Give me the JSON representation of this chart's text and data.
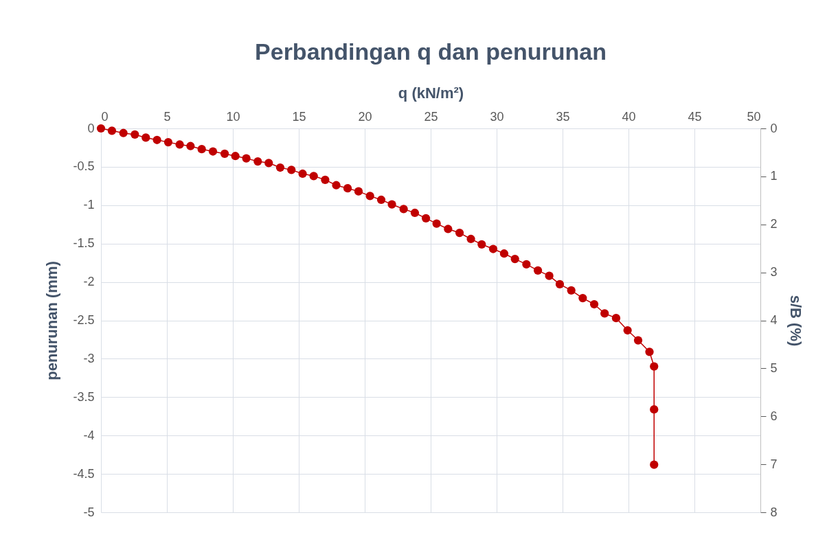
{
  "chart_data": {
    "type": "line",
    "title": "Perbandingan q dan penurunan",
    "xlabel": "q (kN/m²)",
    "ylabel": "penurunan (mm)",
    "y2label": "s/B (%)",
    "x": [
      0,
      0.83,
      1.7,
      2.57,
      3.4,
      4.25,
      5.1,
      5.97,
      6.79,
      7.64,
      8.49,
      9.38,
      10.19,
      11.02,
      11.89,
      12.72,
      13.59,
      14.44,
      15.29,
      16.13,
      17.0,
      17.84,
      18.7,
      19.53,
      20.4,
      21.25,
      22.06,
      22.95,
      23.8,
      24.64,
      25.45,
      26.32,
      27.19,
      28.05,
      28.87,
      29.74,
      30.57,
      31.39,
      32.26,
      33.13,
      33.99,
      34.79,
      35.66,
      36.53,
      37.4,
      38.19,
      39.06,
      39.93,
      40.73,
      41.59,
      41.94,
      41.94,
      41.94
    ],
    "series": [
      {
        "color": "#c00000",
        "values": [
          0,
          -0.03,
          -0.06,
          -0.08,
          -0.12,
          -0.15,
          -0.18,
          -0.21,
          -0.23,
          -0.27,
          -0.3,
          -0.33,
          -0.36,
          -0.39,
          -0.43,
          -0.45,
          -0.51,
          -0.54,
          -0.59,
          -0.62,
          -0.67,
          -0.74,
          -0.78,
          -0.82,
          -0.88,
          -0.93,
          -0.99,
          -1.05,
          -1.1,
          -1.17,
          -1.24,
          -1.31,
          -1.36,
          -1.44,
          -1.51,
          -1.57,
          -1.63,
          -1.7,
          -1.77,
          -1.85,
          -1.92,
          -2.03,
          -2.11,
          -2.21,
          -2.29,
          -2.41,
          -2.47,
          -2.63,
          -2.76,
          -2.91,
          -3.1,
          -3.66,
          -4.38
        ]
      }
    ],
    "xlim": [
      0,
      50
    ],
    "xticks": [
      0,
      5,
      10,
      15,
      20,
      25,
      30,
      35,
      40,
      45,
      50
    ],
    "ylim": [
      -5,
      0
    ],
    "yticks": [
      -5,
      -4.5,
      -4,
      -3.5,
      -3,
      -2.5,
      -2,
      -1.5,
      -1,
      -0.5,
      0
    ],
    "y2lim": [
      8,
      0
    ],
    "y2ticks": [
      0,
      1,
      2,
      3,
      4,
      5,
      6,
      7,
      8
    ],
    "grid": true,
    "marker": "circle",
    "line_style": "solid"
  }
}
